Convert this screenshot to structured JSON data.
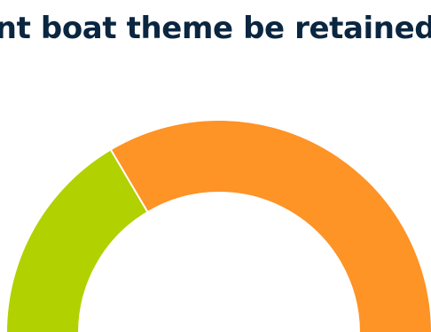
{
  "chart_data": {
    "type": "pie",
    "subtype": "semi-donut",
    "title": "nt boat theme be retained",
    "slices": [
      {
        "value": 33,
        "color": "#b1d100"
      },
      {
        "value": 67,
        "color": "#fe9326"
      }
    ],
    "separator_color": "#ffffff",
    "legend": "none",
    "grid": false
  }
}
